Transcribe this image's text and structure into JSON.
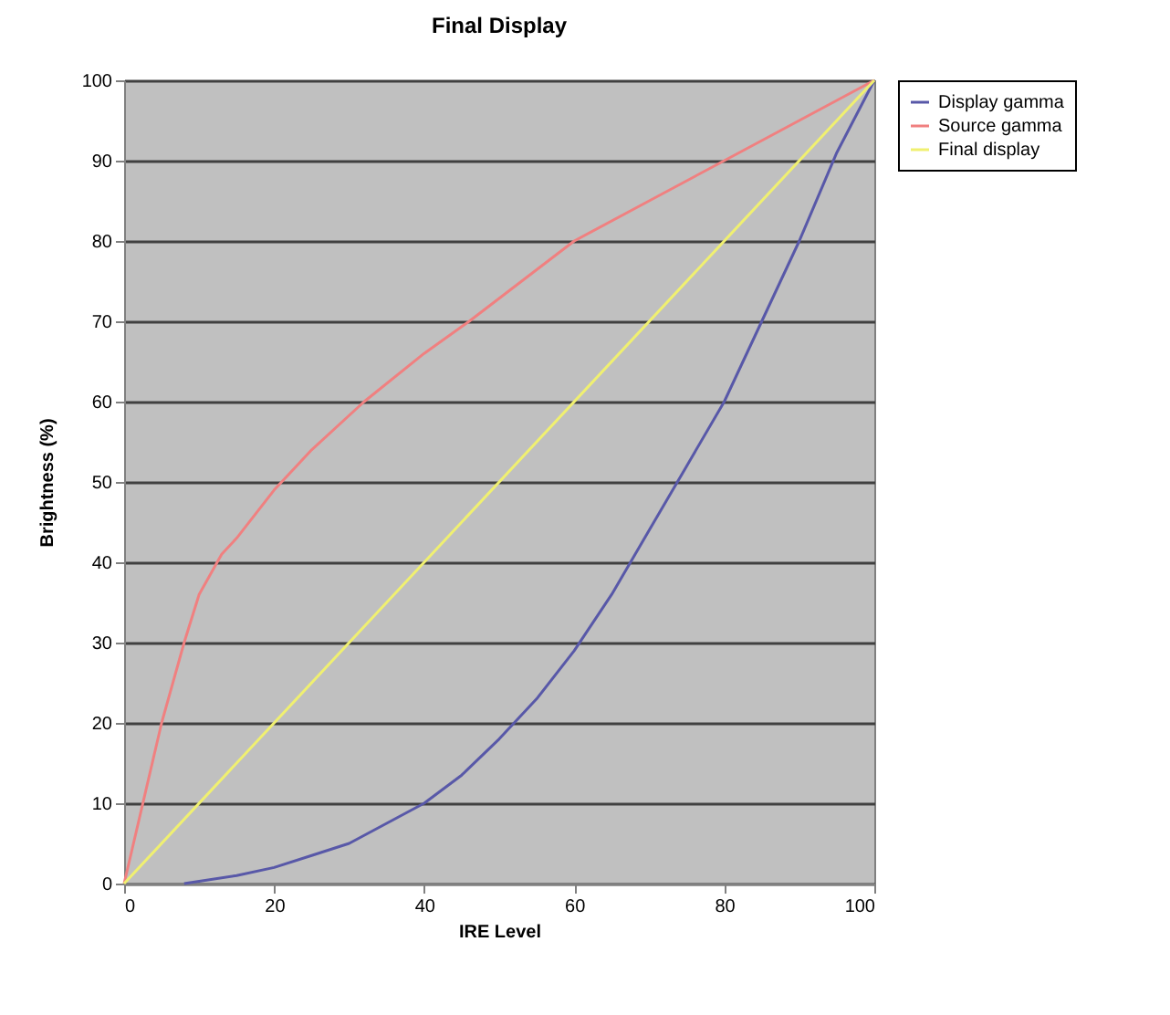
{
  "chart_data": {
    "type": "line",
    "title": "Final Display",
    "xlabel": "IRE Level",
    "ylabel": "Brightness (%)",
    "xlim": [
      0,
      100
    ],
    "xticks": [
      0,
      20,
      40,
      60,
      80,
      100
    ],
    "ylim": [
      0,
      100
    ],
    "yticks": [
      0,
      10,
      20,
      30,
      40,
      50,
      60,
      70,
      80,
      90,
      100
    ],
    "grid": "y",
    "legend": "right",
    "marker": "none",
    "line_style": "solid",
    "series": [
      {
        "name": "Display gamma",
        "color": "#5858a8",
        "x": [
          8,
          15,
          20,
          25,
          30,
          35,
          40,
          45,
          50,
          55,
          60,
          65,
          70,
          75,
          80,
          85,
          90,
          95,
          100
        ],
        "values": [
          0,
          1,
          2,
          3.5,
          5,
          7.5,
          10,
          13.5,
          18,
          23,
          29,
          36,
          44,
          52,
          60,
          70,
          80,
          91,
          100
        ]
      },
      {
        "name": "Source gamma",
        "color": "#f08080",
        "x": [
          0,
          3,
          5,
          8,
          10,
          13,
          15,
          20,
          25,
          32,
          40,
          46,
          53,
          60,
          70,
          80,
          90,
          100
        ],
        "values": [
          0,
          12,
          20,
          30,
          36,
          41,
          43,
          49,
          54,
          60,
          66,
          70,
          75,
          80,
          85,
          90,
          95,
          100
        ]
      },
      {
        "name": "Final display",
        "color": "#f0f070",
        "x": [
          0,
          100
        ],
        "values": [
          0,
          100
        ]
      }
    ]
  }
}
